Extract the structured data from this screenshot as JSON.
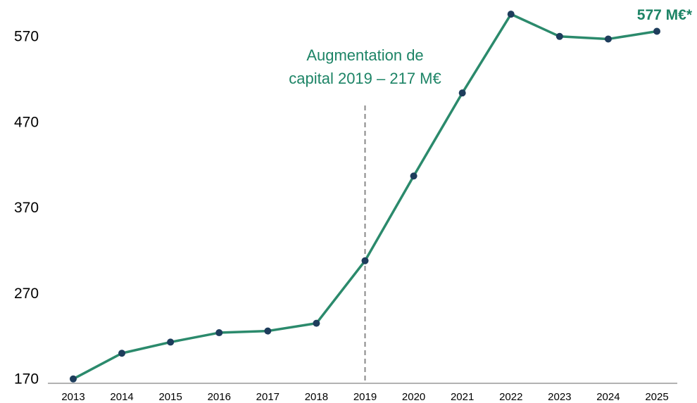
{
  "chart_data": {
    "type": "line",
    "categories": [
      "2013",
      "2014",
      "2015",
      "2016",
      "2017",
      "2018",
      "2019",
      "2020",
      "2021",
      "2022",
      "2023",
      "2024",
      "2025"
    ],
    "values": [
      171,
      201,
      214,
      225,
      227,
      236,
      309,
      408,
      505,
      597,
      571,
      568,
      577
    ],
    "value_labels": [
      null,
      null,
      null,
      null,
      null,
      null,
      null,
      null,
      null,
      null,
      null,
      null,
      "577 M€*"
    ],
    "color": "#2b8a6c",
    "marker_color": "#1e3d5c",
    "ylim": [
      170,
      600
    ],
    "yticks": [
      170,
      270,
      370,
      470,
      570
    ],
    "annotation": {
      "category": "2019",
      "lines": [
        "Augmentation de",
        "capital 2019 – 217 M€"
      ]
    },
    "grid": false
  }
}
